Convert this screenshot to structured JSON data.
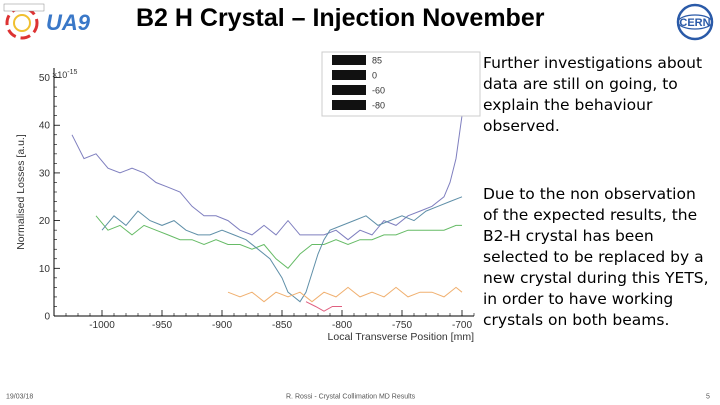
{
  "slide": {
    "title": "B2 H  Crystal – Injection November",
    "paragraphs": [
      "Further investigations about data are still on going, to explain the behaviour observed.",
      "Due to the non observation of the expected results, the B2-H crystal has been selected to be replaced by a new crystal during this YETS, in order to have working crystals on both beams."
    ],
    "footer": {
      "date": "19/03/18",
      "center": "R. Rossi - Crystal Collimation MD Results",
      "page": "5"
    },
    "logos": {
      "left": "UA9",
      "right": "CERN"
    }
  },
  "colors": {
    "series_purple": "#7f7fbf",
    "series_green": "#66bb66",
    "series_steel": "#5f8fa8",
    "series_orange": "#f0b070",
    "series_pink": "#e06080"
  },
  "chart_data": {
    "type": "line",
    "xlabel": "Local Transverse Position [mm]",
    "ylabel": "Normalised Losses [a.u.]",
    "y_multiplier": "×10",
    "y_exponent": "-15",
    "xlim": [
      -1040,
      -690
    ],
    "ylim": [
      0,
      52
    ],
    "xticks": [
      -1000,
      -950,
      -900,
      -850,
      -800,
      -750,
      -700
    ],
    "yticks": [
      0,
      10,
      20,
      30,
      40,
      50
    ],
    "legend_position": "top-right",
    "legend": [
      "85",
      "0",
      "-60",
      "-80"
    ],
    "series": [
      {
        "x": [
          -1025,
          -1015,
          -1005,
          -995,
          -985,
          -975,
          -965,
          -955,
          -945,
          -935,
          -925,
          -915,
          -905,
          -895,
          -885,
          -875,
          -865,
          -855,
          -845,
          -835,
          -825,
          -815,
          -805,
          -795,
          -785,
          -775,
          -765,
          -755,
          -745,
          -735,
          -725,
          -715,
          -710,
          -705,
          -700,
          -697
        ],
        "y": [
          38,
          33,
          34,
          31,
          30,
          31,
          30,
          28,
          27,
          26,
          23,
          21,
          21,
          20,
          18,
          17,
          19,
          17,
          20,
          17,
          17,
          17,
          18,
          16,
          18,
          17,
          20,
          19,
          21,
          22,
          23,
          25,
          28,
          33,
          42,
          50
        ]
      },
      {
        "x": [
          -1005,
          -995,
          -985,
          -975,
          -965,
          -955,
          -945,
          -935,
          -925,
          -915,
          -905,
          -895,
          -885,
          -875,
          -865,
          -855,
          -845,
          -835,
          -825,
          -815,
          -805,
          -795,
          -785,
          -775,
          -765,
          -755,
          -745,
          -735,
          -725,
          -715,
          -705,
          -700
        ],
        "y": [
          21,
          18,
          19,
          17,
          19,
          18,
          17,
          16,
          16,
          15,
          16,
          15,
          15,
          14,
          15,
          12,
          10,
          13,
          15,
          15,
          16,
          15,
          16,
          16,
          17,
          17,
          18,
          18,
          18,
          18,
          19,
          19
        ]
      },
      {
        "x": [
          -1000,
          -990,
          -980,
          -970,
          -960,
          -950,
          -940,
          -930,
          -920,
          -910,
          -900,
          -890,
          -880,
          -870,
          -860,
          -850,
          -845,
          -840,
          -835,
          -830,
          -825,
          -820,
          -815,
          -810,
          -800,
          -790,
          -780,
          -770,
          -760,
          -750,
          -740,
          -730,
          -720,
          -710,
          -700
        ],
        "y": [
          18,
          21,
          19,
          22,
          20,
          19,
          20,
          18,
          17,
          17,
          18,
          17,
          16,
          14,
          12,
          8,
          5,
          4,
          3,
          5,
          9,
          13,
          16,
          18,
          19,
          20,
          21,
          19,
          20,
          21,
          20,
          22,
          23,
          24,
          25
        ]
      },
      {
        "x": [
          -895,
          -885,
          -875,
          -865,
          -855,
          -845,
          -835,
          -825,
          -815,
          -805,
          -795,
          -785,
          -775,
          -765,
          -755,
          -745,
          -735,
          -725,
          -715,
          -705,
          -700
        ],
        "y": [
          5,
          4,
          5,
          3,
          5,
          4,
          5,
          3,
          5,
          4,
          6,
          4,
          5,
          4,
          6,
          4,
          5,
          5,
          4,
          6,
          5
        ]
      },
      {
        "x": [
          -830,
          -822,
          -815,
          -808,
          -800
        ],
        "y": [
          3,
          2,
          1,
          2,
          2
        ]
      }
    ]
  }
}
